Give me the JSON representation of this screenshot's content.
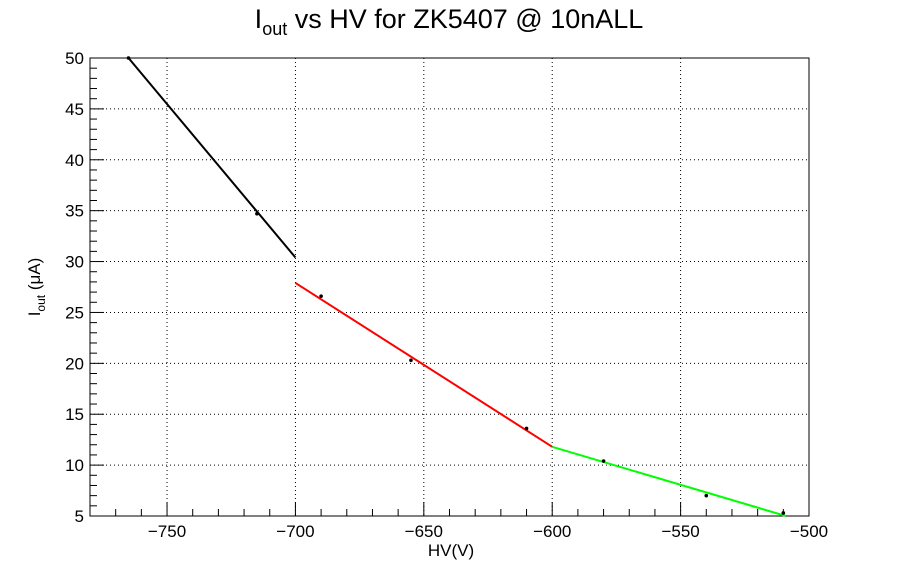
{
  "chart_data": {
    "type": "scatter",
    "title": {
      "main": "I",
      "sub": "out",
      "rest": " vs HV for ZK5407 @ 10nALL"
    },
    "xlabel": "HV(V)",
    "ylabel": {
      "main": "I",
      "sub": "out",
      "rest": " (μA)"
    },
    "xlim": [
      -780,
      -500
    ],
    "ylim": [
      5,
      50
    ],
    "grid": true,
    "x_ticks": [
      {
        "value": -750,
        "label": "−750"
      },
      {
        "value": -700,
        "label": "−700"
      },
      {
        "value": -650,
        "label": "−650"
      },
      {
        "value": -600,
        "label": "−600"
      },
      {
        "value": -550,
        "label": "−550"
      },
      {
        "value": -500,
        "label": "−500"
      }
    ],
    "y_ticks": [
      {
        "value": 5,
        "label": "5"
      },
      {
        "value": 10,
        "label": "10"
      },
      {
        "value": 15,
        "label": "15"
      },
      {
        "value": 20,
        "label": "20"
      },
      {
        "value": 25,
        "label": "25"
      },
      {
        "value": 30,
        "label": "30"
      },
      {
        "value": 35,
        "label": "35"
      },
      {
        "value": 40,
        "label": "40"
      },
      {
        "value": 45,
        "label": "45"
      },
      {
        "value": 50,
        "label": "50"
      }
    ],
    "points": [
      {
        "x": -765,
        "y": 50.0
      },
      {
        "x": -715,
        "y": 34.7
      },
      {
        "x": -690,
        "y": 26.6
      },
      {
        "x": -655,
        "y": 20.3
      },
      {
        "x": -610,
        "y": 13.6
      },
      {
        "x": -580,
        "y": 10.4
      },
      {
        "x": -540,
        "y": 7.0
      },
      {
        "x": -510,
        "y": 5.3
      }
    ],
    "fits": [
      {
        "x": [
          -765,
          -700
        ],
        "y": [
          50.0,
          30.4
        ],
        "color": "#000000"
      },
      {
        "x": [
          -700,
          -600
        ],
        "y": [
          27.9,
          11.8
        ],
        "color": "#ff0000"
      },
      {
        "x": [
          -600,
          -509
        ],
        "y": [
          11.8,
          5.0
        ],
        "color": "#00ff00"
      }
    ]
  }
}
